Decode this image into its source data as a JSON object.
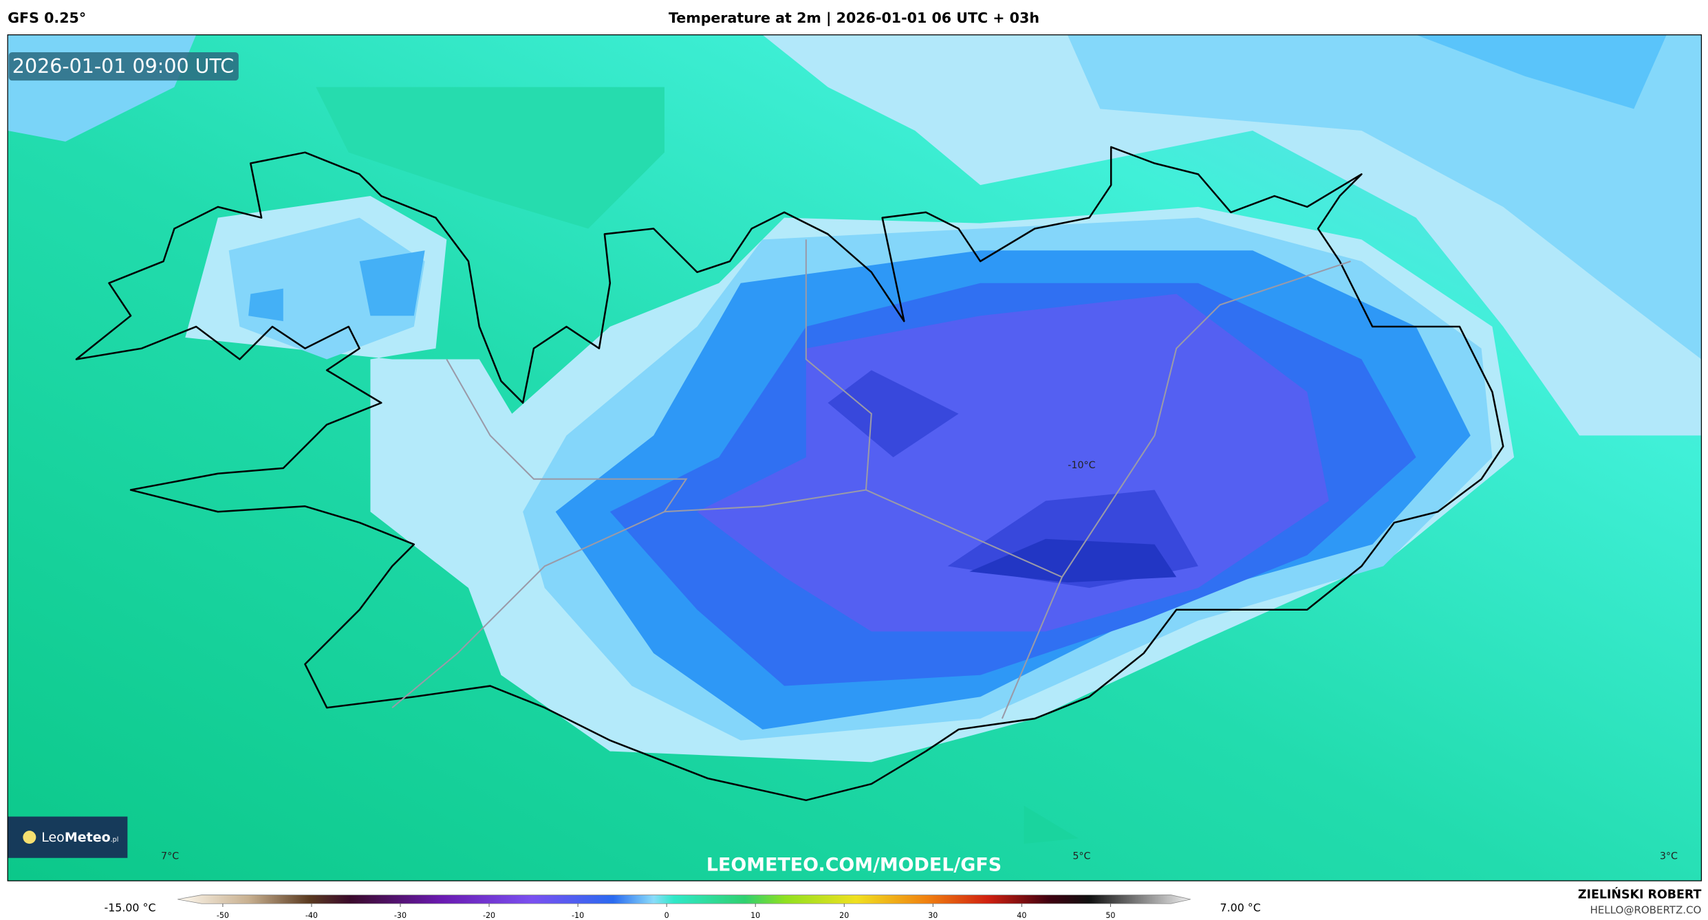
{
  "header": {
    "model": "GFS 0.25°",
    "title": "Temperature at 2m | 2026-01-01 06 UTC + 03h"
  },
  "map": {
    "timestamp": "2026-01-01 09:00 UTC",
    "labels": [
      "-10°C",
      "7°C",
      "5°C",
      "3°C"
    ],
    "watermark": "LEOMETEO.COM/MODEL/GFS"
  },
  "logo": {
    "leo": "Leo",
    "meteo": "Meteo",
    "suffix": ".pl"
  },
  "colorbar": {
    "min_label": "-15.00 °C",
    "max_label": "7.00 °C",
    "ticks": [
      -50,
      -40,
      -30,
      -20,
      -10,
      0,
      10,
      20,
      30,
      40,
      50
    ]
  },
  "footer": {
    "author": "ZIELIŃSKI ROBERT",
    "email": "HELLO@ROBERTZ.CO"
  }
}
